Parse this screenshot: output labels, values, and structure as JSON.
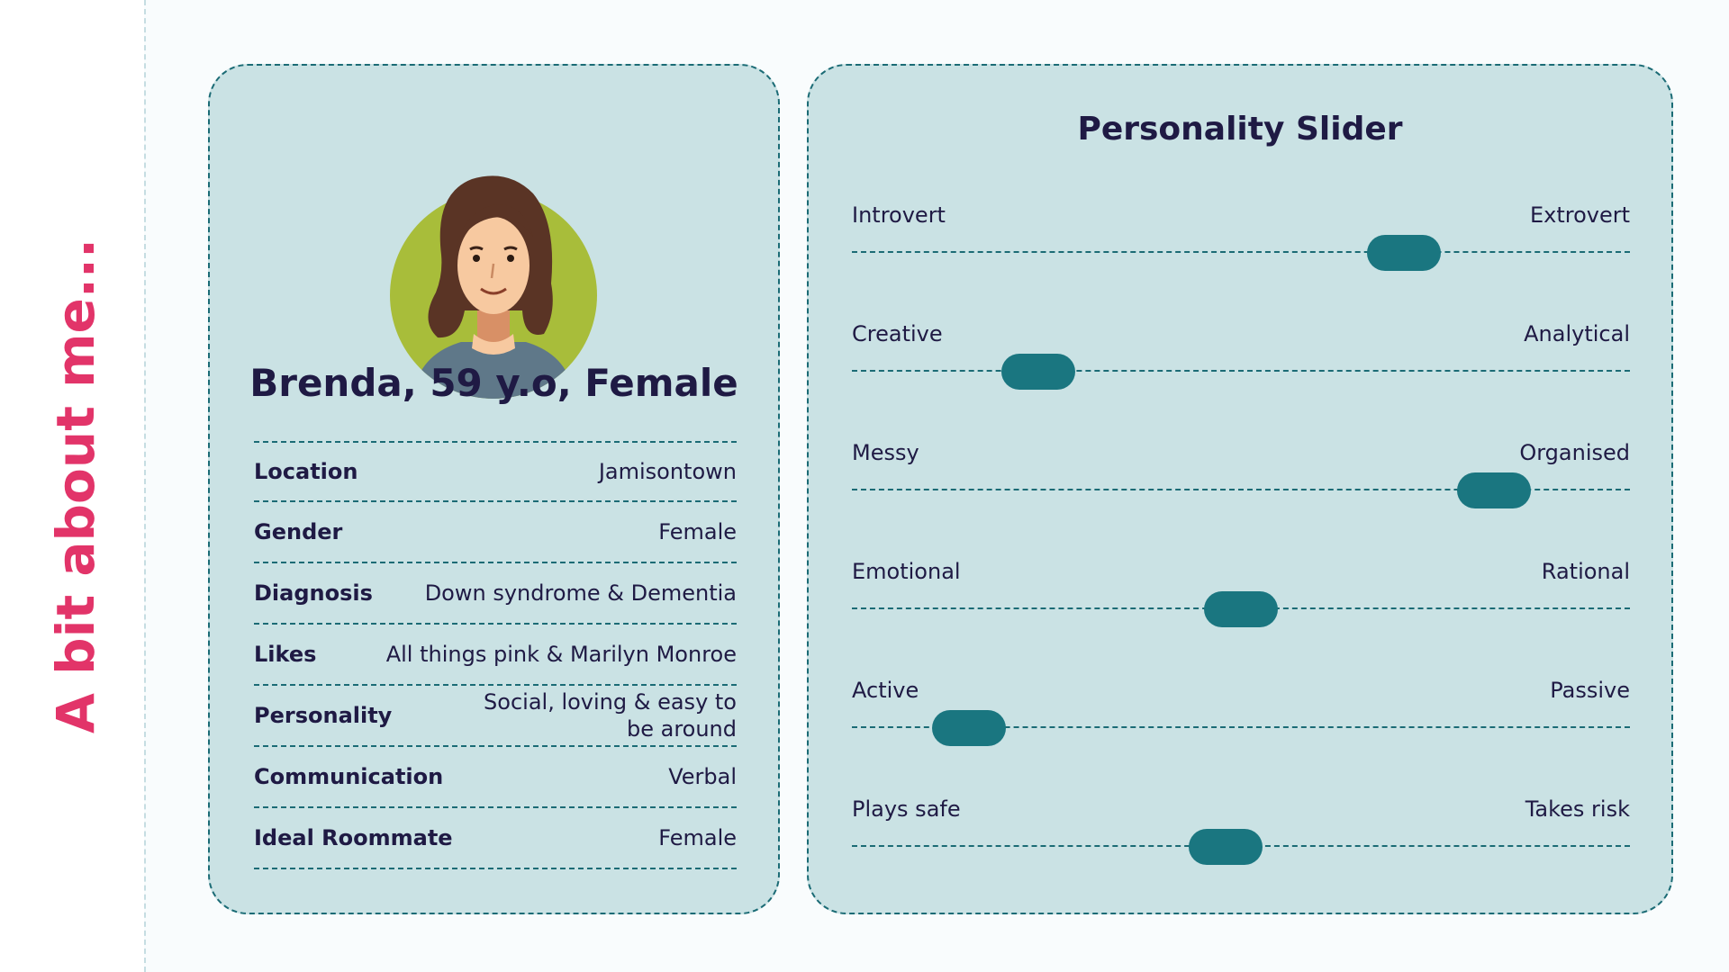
{
  "side_title": "A bit about me...",
  "profile": {
    "name": "Brenda, 59 y.o, Female",
    "rows": [
      {
        "label": "Location",
        "value": "Jamisontown"
      },
      {
        "label": "Gender",
        "value": "Female"
      },
      {
        "label": "Diagnosis",
        "value": "Down syndrome & Dementia"
      },
      {
        "label": "Likes",
        "value": "All things pink & Marilyn Monroe"
      },
      {
        "label": "Personality",
        "value": "Social, loving & easy to be around"
      },
      {
        "label": "Communication",
        "value": "Verbal"
      },
      {
        "label": "Ideal Roommate",
        "value": "Female"
      }
    ]
  },
  "personality": {
    "title": "Personality Slider",
    "sliders": [
      {
        "left": "Introvert",
        "right": "Extrovert",
        "value": 0.71
      },
      {
        "left": "Creative",
        "right": "Analytical",
        "value": 0.24
      },
      {
        "left": "Messy",
        "right": "Organised",
        "value": 0.825
      },
      {
        "left": "Emotional",
        "right": "Rational",
        "value": 0.5
      },
      {
        "left": "Active",
        "right": "Passive",
        "value": 0.15
      },
      {
        "left": "Plays safe",
        "right": "Takes risk",
        "value": 0.48
      }
    ]
  },
  "colors": {
    "accent": "#e23469",
    "card_bg": "#cae2e4",
    "teal": "#1a7680",
    "text": "#1f1a44"
  },
  "icons": {
    "avatar": "woman-avatar-icon"
  }
}
